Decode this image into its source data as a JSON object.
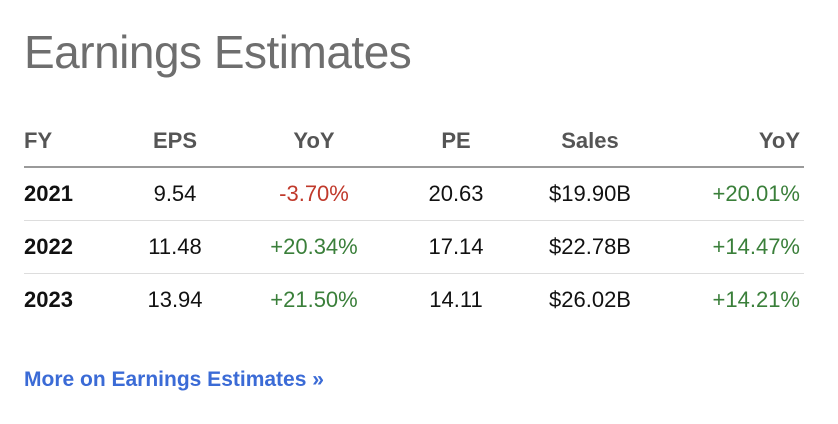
{
  "widget": {
    "title": "Earnings Estimates",
    "link_label": "More on Earnings Estimates »"
  },
  "colors": {
    "negative": "#c0392b",
    "positive": "#3a7f3a",
    "link": "#3b6bd6",
    "title": "#6e6e6e"
  },
  "table": {
    "headers": {
      "fy": "FY",
      "eps": "EPS",
      "eps_yoy": "YoY",
      "pe": "PE",
      "sales": "Sales",
      "sales_yoy": "YoY"
    },
    "rows": [
      {
        "fy": "2021",
        "eps": "9.54",
        "eps_yoy": "-3.70%",
        "pe": "20.63",
        "sales": "$19.90B",
        "sales_yoy": "+20.01%"
      },
      {
        "fy": "2022",
        "eps": "11.48",
        "eps_yoy": "+20.34%",
        "pe": "17.14",
        "sales": "$22.78B",
        "sales_yoy": "+14.47%"
      },
      {
        "fy": "2023",
        "eps": "13.94",
        "eps_yoy": "+21.50%",
        "pe": "14.11",
        "sales": "$26.02B",
        "sales_yoy": "+14.21%"
      }
    ]
  }
}
